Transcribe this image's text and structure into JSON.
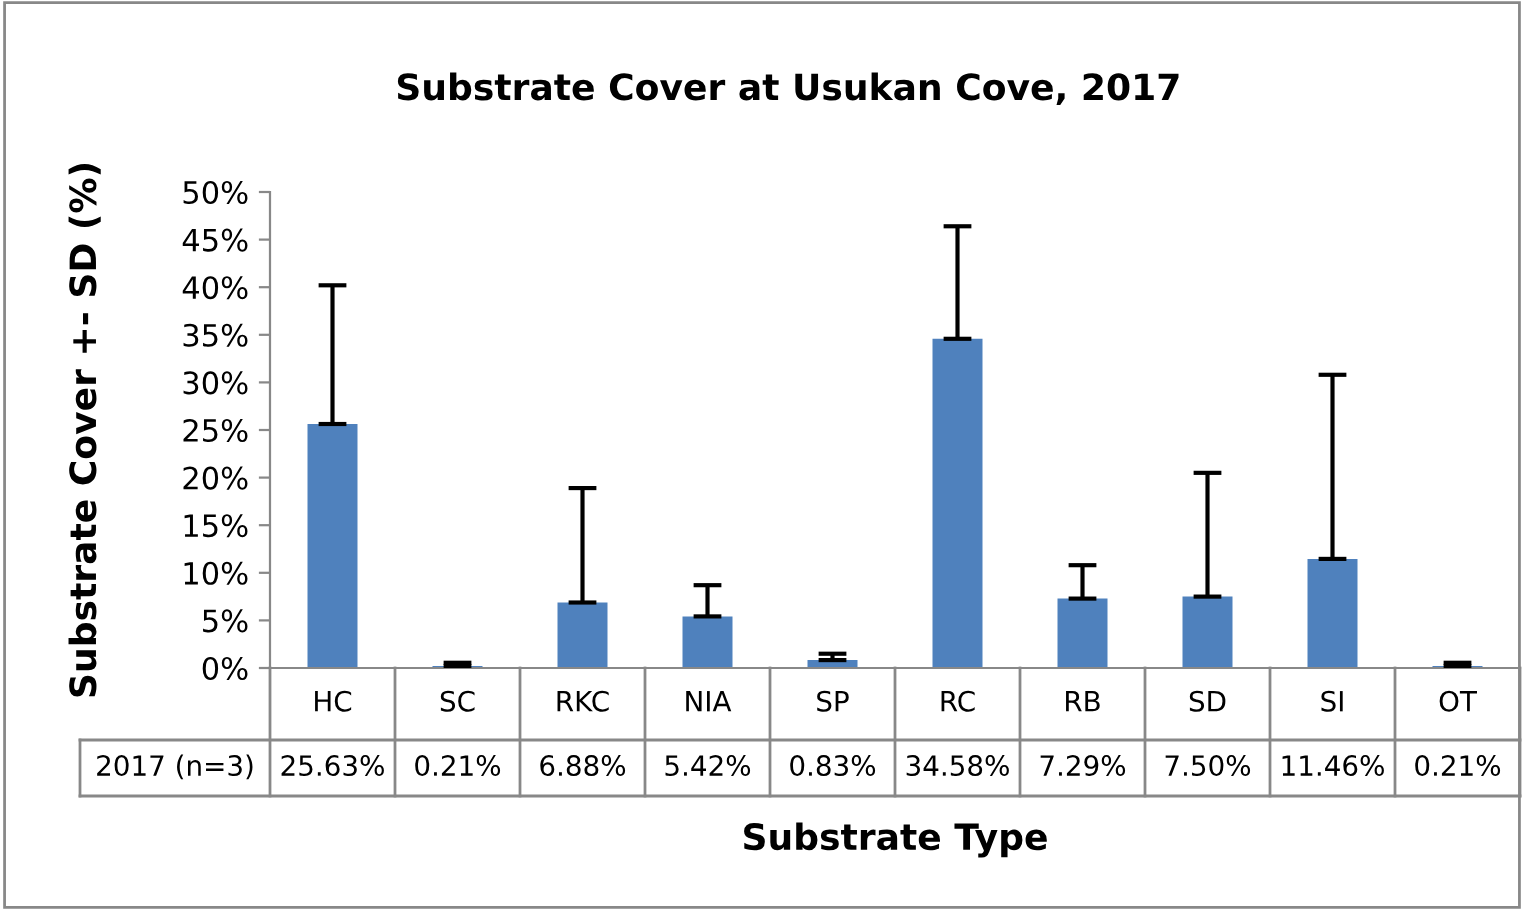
{
  "chart_data": {
    "type": "bar",
    "title": "Substrate Cover at Usukan Cove, 2017",
    "xlabel": "Substrate Type",
    "ylabel": "Substrate Cover +- SD (%)",
    "categories": [
      "HC",
      "SC",
      "RKC",
      "NIA",
      "SP",
      "RC",
      "RB",
      "SD",
      "SI",
      "OT"
    ],
    "series": [
      {
        "name": "2017 (n=3)",
        "color": "#4f81bd",
        "values": [
          25.63,
          0.21,
          6.88,
          5.42,
          0.83,
          34.58,
          7.29,
          7.5,
          11.46,
          0.21
        ],
        "value_labels": [
          "25.63%",
          "0.21%",
          "6.88%",
          "5.42%",
          "0.83%",
          "34.58%",
          "7.29%",
          "7.50%",
          "11.46%",
          "0.21%"
        ],
        "errors": [
          [
            25.63,
            40.2
          ],
          [
            0.21,
            0.55
          ],
          [
            6.88,
            18.9
          ],
          [
            5.42,
            8.7
          ],
          [
            0.83,
            1.5
          ],
          [
            34.58,
            46.4
          ],
          [
            7.29,
            10.8
          ],
          [
            7.5,
            20.5
          ],
          [
            11.46,
            30.8
          ],
          [
            0.21,
            0.55
          ]
        ]
      }
    ],
    "ylim": [
      0,
      50
    ],
    "yticks": [
      {
        "value": 0,
        "label": "0%"
      },
      {
        "value": 5,
        "label": "5%"
      },
      {
        "value": 10,
        "label": "10%"
      },
      {
        "value": 15,
        "label": "15%"
      },
      {
        "value": 20,
        "label": "20%"
      },
      {
        "value": 25,
        "label": "25%"
      },
      {
        "value": 30,
        "label": "30%"
      },
      {
        "value": 35,
        "label": "35%"
      },
      {
        "value": 40,
        "label": "40%"
      },
      {
        "value": 45,
        "label": "45%"
      },
      {
        "value": 50,
        "label": "50%"
      }
    ],
    "grid": false,
    "legend": false
  }
}
